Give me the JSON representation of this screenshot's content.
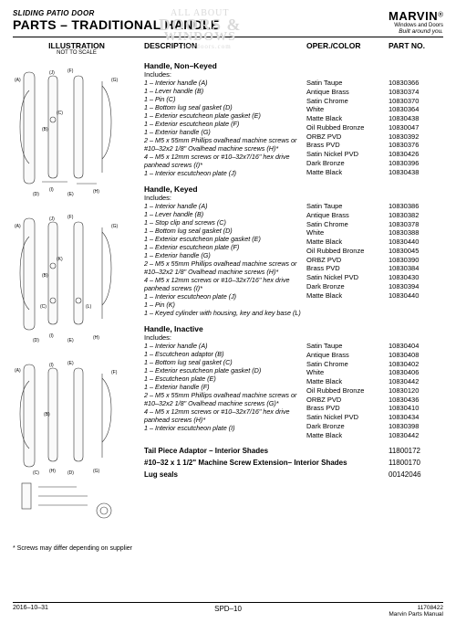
{
  "header": {
    "product_line": "SLIDING PATIO DOOR",
    "title": "PARTS – TRADITIONAL HANDLE",
    "brand": "MARVIN",
    "brand_sub": "Windows and Doors",
    "tagline": "Built around you.",
    "watermark_l1": "ALL ABOUT",
    "watermark_l2": "DOORS &",
    "watermark_l3": "WINDOWS",
    "watermark_l4": "allaboutdoors.com"
  },
  "columns": {
    "illustration": "ILLUSTRATION",
    "illustration_sub": "NOT TO SCALE",
    "description": "DESCRIPTION",
    "oper": "OPER./COLOR",
    "part": "PART NO."
  },
  "sections": [
    {
      "title": "Handle, Non–Keyed",
      "includes_label": "Includes:",
      "includes": [
        "1 – Interior handle (A)",
        "1 – Lever handle (B)",
        "1 – Pin (C)",
        "1 – Bottom lug seal gasket (D)",
        "1 – Exterior escutcheon plate gasket (E)",
        "1 – Exterior escutcheon plate (F)",
        "1 – Exterior handle (G)",
        "2 – M5 x 55mm Phillips ovalhead machine screws or #10–32x2 1/8\" Ovalhead machine screws (H)*",
        "4 – M5 x 12mm screws or #10–32x7/16\" hex drive panhead screws (I)*",
        "1 – Interior escutcheon plate (J)"
      ],
      "variants": [
        {
          "color": "Satin Taupe",
          "part": "10830366"
        },
        {
          "color": "Antique Brass",
          "part": "10830374"
        },
        {
          "color": "Satin Chrome",
          "part": "10830370"
        },
        {
          "color": "White",
          "part": "10830364"
        },
        {
          "color": "Matte Black",
          "part": "10830438"
        },
        {
          "color": "Oil Rubbed Bronze",
          "part": "10830047"
        },
        {
          "color": "ORBZ PVD",
          "part": "10830392"
        },
        {
          "color": "Brass PVD",
          "part": "10830376"
        },
        {
          "color": "Satin Nickel PVD",
          "part": "10830426"
        },
        {
          "color": "Dark Bronze",
          "part": "10830396"
        },
        {
          "color": "Matte Black",
          "part": "10830438"
        }
      ]
    },
    {
      "title": "Handle, Keyed",
      "includes_label": "Includes:",
      "includes": [
        "1 – Interior handle (A)",
        "1 – Lever handle (B)",
        "1 – Stop clip and screws (C)",
        "1 – Bottom lug seal gasket (D)",
        "1 – Exterior escutcheon plate gasket (E)",
        "1 – Exterior escutcheon plate (F)",
        "1 – Exterior handle (G)",
        "2 – M5 x 55mm Phillips ovalhead machine screws or #10–32x2 1/8\" Ovalhead machine screws (H)*",
        "4 – M5 x 12mm screws or #10–32x7/16\" hex drive panhead screws (I)*",
        "1 – Interior escutcheon plate (J)",
        "1 – Pin (K)",
        "1 – Keyed cylinder with housing, key and key base (L)"
      ],
      "variants": [
        {
          "color": "Satin Taupe",
          "part": "10830386"
        },
        {
          "color": "Antique Brass",
          "part": "10830382"
        },
        {
          "color": "Satin Chrome",
          "part": "10830378"
        },
        {
          "color": "White",
          "part": "10830388"
        },
        {
          "color": "Matte Black",
          "part": "10830440"
        },
        {
          "color": "Oil Rubbed Bronze",
          "part": "10830045"
        },
        {
          "color": "ORBZ PVD",
          "part": "10830390"
        },
        {
          "color": "Brass PVD",
          "part": "10830384"
        },
        {
          "color": "Satin Nickel PVD",
          "part": "10830430"
        },
        {
          "color": "Dark Bronze",
          "part": "10830394"
        },
        {
          "color": "Matte Black",
          "part": "10830440"
        }
      ]
    },
    {
      "title": "Handle, Inactive",
      "includes_label": "Includes:",
      "includes": [
        "1 – Interior handle (A)",
        "1 – Escutcheon adaptor (B)",
        "1 – Bottom lug seal gasket (C)",
        "1 – Exterior escutcheon plate gasket (D)",
        "1 – Escutcheon plate (E)",
        "1 – Exterior handle (F)",
        "2 – M5 x 55mm Phillips ovalhead machine screws or #10–32x2 1/8\" Ovalhead machine screws (G)*",
        "4 – M5 x 12mm screws or #10–32x7/16\" hex drive panhead screws (H)*",
        "1 – Interior escutcheon plate (I)"
      ],
      "variants": [
        {
          "color": "Satin Taupe",
          "part": "10830404"
        },
        {
          "color": "Antique Brass",
          "part": "10830408"
        },
        {
          "color": "Satin Chrome",
          "part": "10830402"
        },
        {
          "color": "White",
          "part": "10830406"
        },
        {
          "color": "Matte Black",
          "part": "10830442"
        },
        {
          "color": "Oil Rubbed Bronze",
          "part": "10830120"
        },
        {
          "color": "ORBZ PVD",
          "part": "10830436"
        },
        {
          "color": "Brass PVD",
          "part": "10830410"
        },
        {
          "color": "Satin Nickel PVD",
          "part": "10830434"
        },
        {
          "color": "Dark Bronze",
          "part": "10830398"
        },
        {
          "color": "Matte Black",
          "part": "10830442"
        }
      ]
    }
  ],
  "simple_rows": [
    {
      "label": "Tail Piece Adaptor – Interior Shades",
      "part": "11800172"
    },
    {
      "label": "#10–32 x 1 1/2\" Machine Screw Extension– Interior Shades",
      "part": "11800170"
    },
    {
      "label": "Lug seals",
      "part": "00142046"
    }
  ],
  "footnote": "*    Screws may differ depending on supplier",
  "footer": {
    "date": "2016–10–31",
    "page": "SPD–10",
    "doc_no": "11708422",
    "doc_name": "Marvin Parts Manual"
  },
  "diagram_labels": [
    "(A)",
    "(B)",
    "(J)",
    "(F)",
    "(G)",
    "(I)",
    "(I)",
    "(D)",
    "(E)",
    "(H)",
    "(C)"
  ]
}
